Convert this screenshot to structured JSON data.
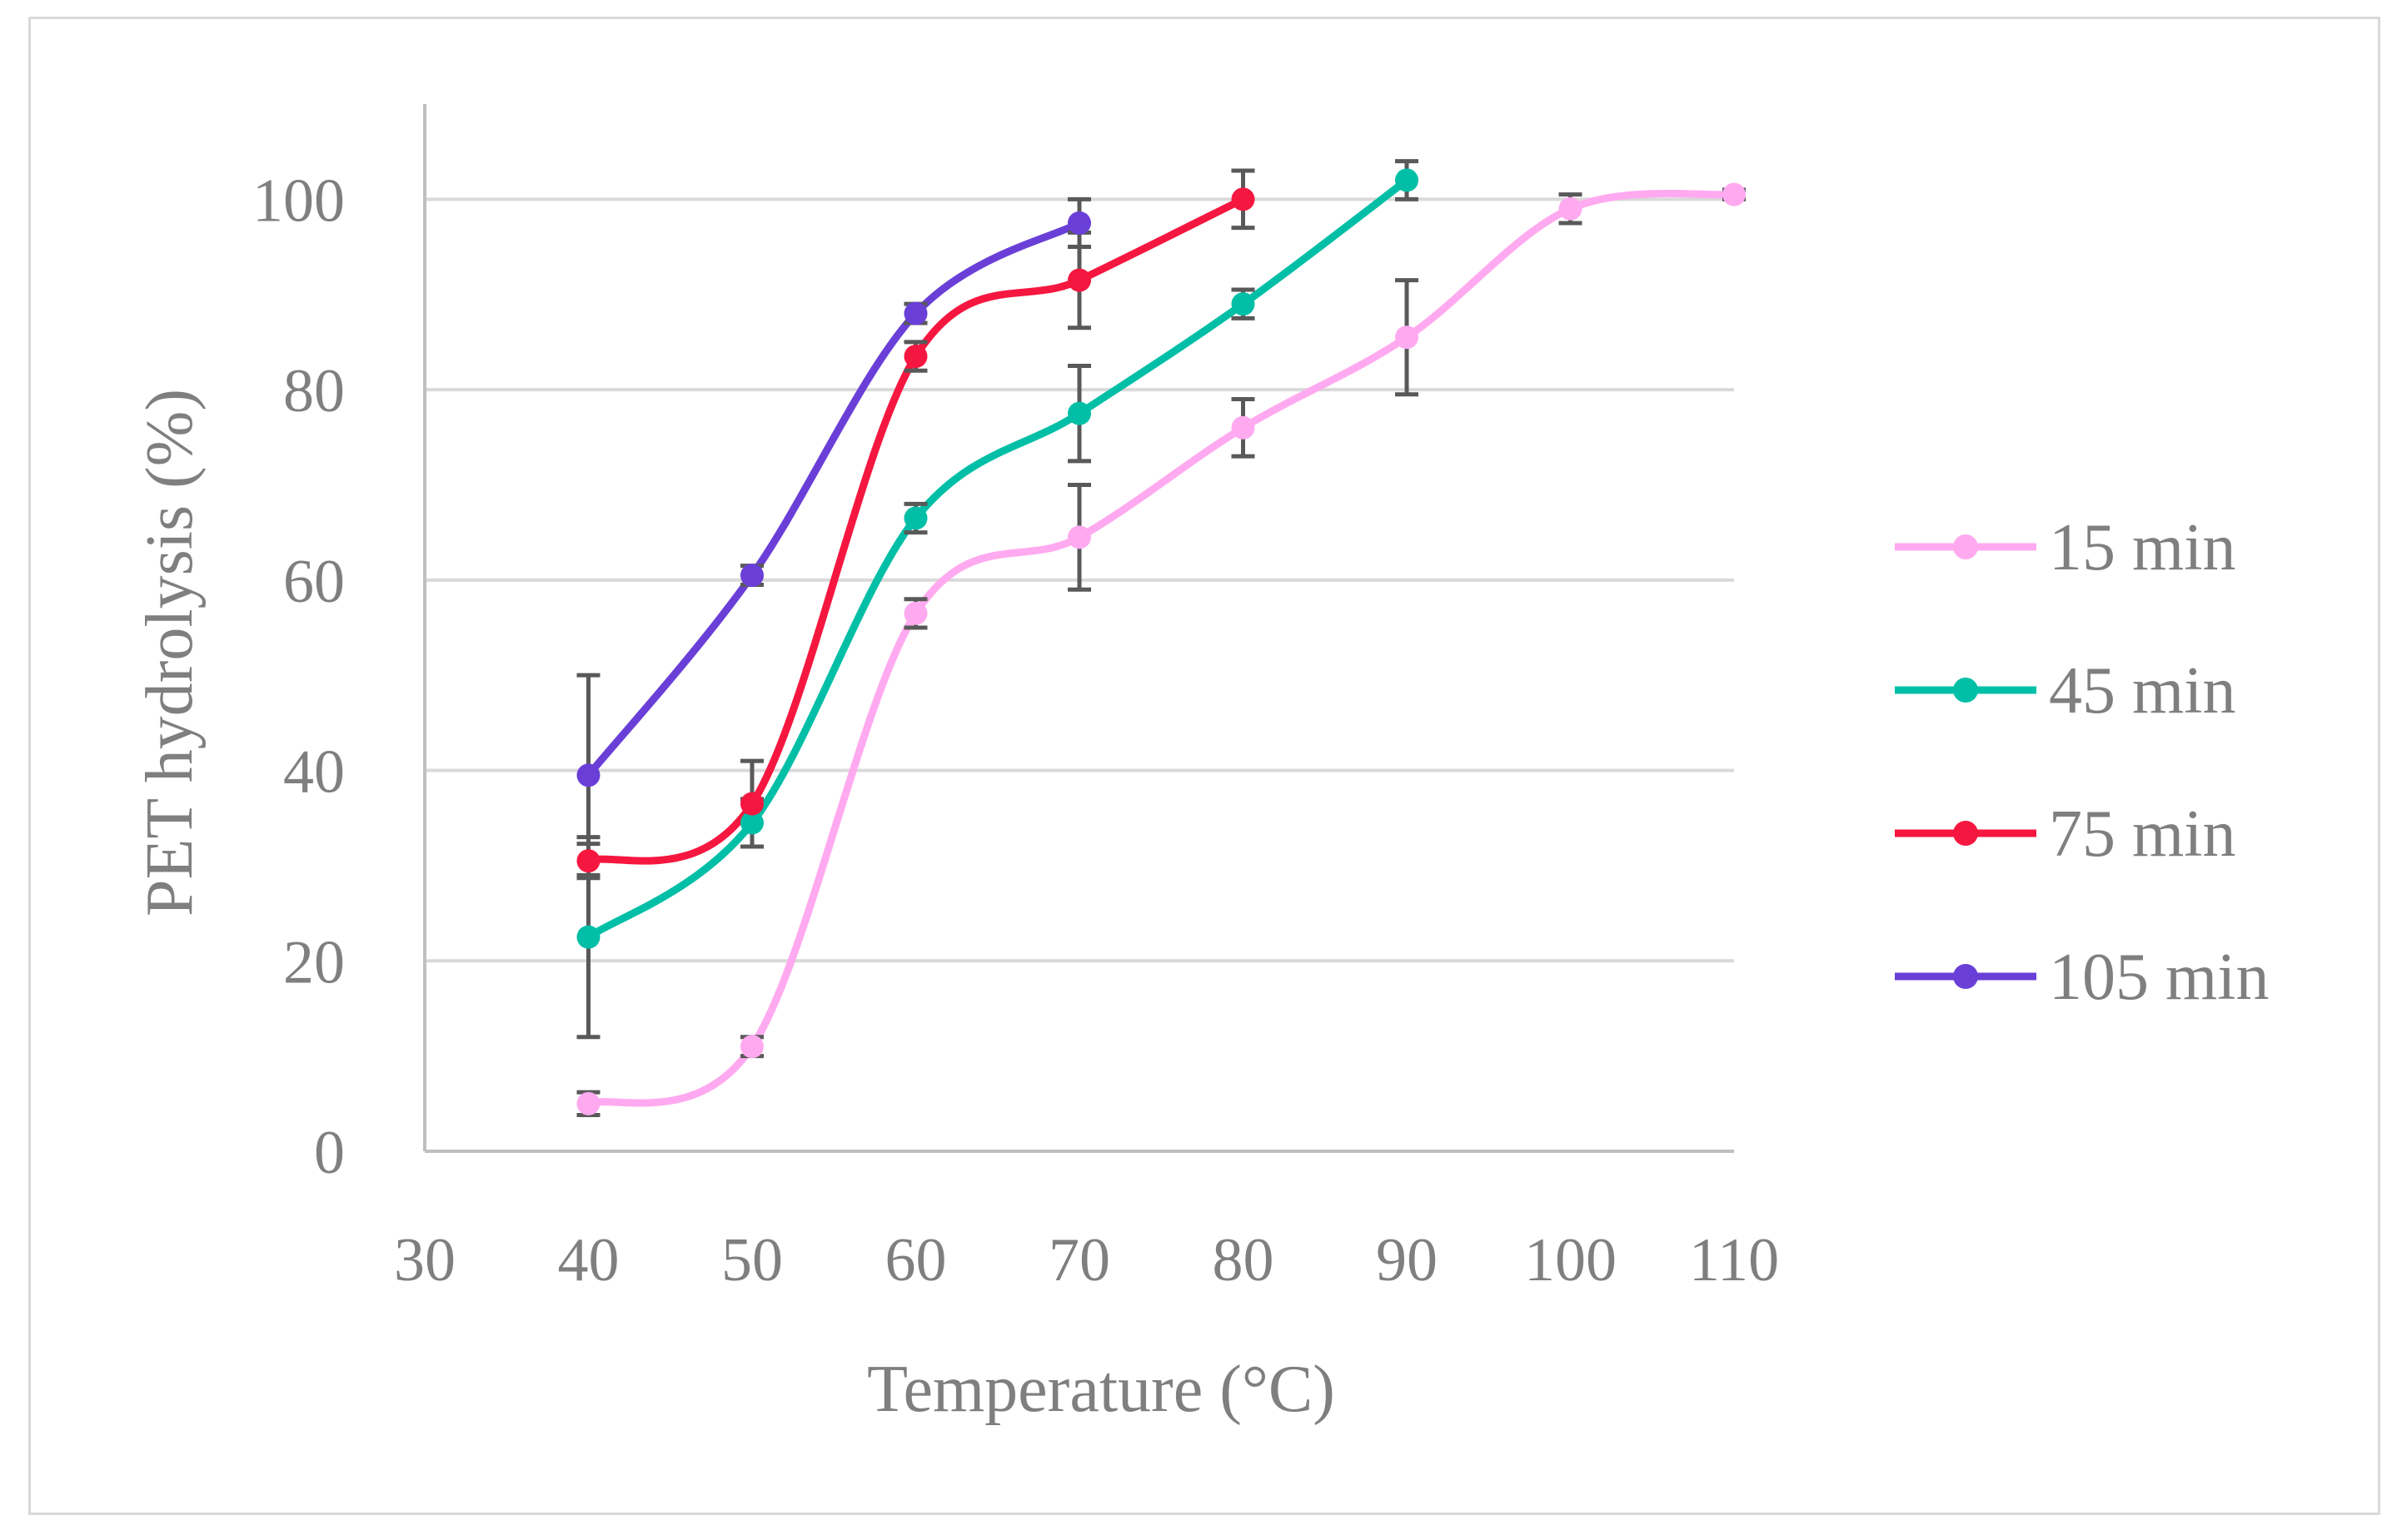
{
  "chart_data": {
    "type": "line",
    "title": "",
    "xlabel": "Temperature (°C)",
    "ylabel": "PET hydrolysis (%)",
    "xlim": [
      30,
      110
    ],
    "ylim": [
      0,
      110
    ],
    "x_ticks": [
      "30",
      "40",
      "50",
      "60",
      "70",
      "80",
      "90",
      "100",
      "110"
    ],
    "y_ticks": [
      "0",
      "20",
      "40",
      "60",
      "80",
      "100"
    ],
    "grid": true,
    "smoothed": true,
    "legend_position": "right",
    "series": [
      {
        "name": "15 min",
        "color": "#ffaaf0",
        "x": [
          40,
          50,
          60,
          70,
          80,
          90,
          100,
          110
        ],
        "values": [
          5,
          11,
          56.5,
          64.5,
          76,
          85.5,
          99,
          100.5
        ],
        "errors": [
          1.2,
          1,
          1.5,
          5.5,
          3,
          6,
          1.5,
          0.5
        ]
      },
      {
        "name": "45 min",
        "color": "#00bfa6",
        "x": [
          40,
          50,
          60,
          70,
          80,
          90
        ],
        "values": [
          22.5,
          34.5,
          66.5,
          77.5,
          89,
          102
        ],
        "errors": [
          10.5,
          2.5,
          1.5,
          5,
          1.5,
          2
        ]
      },
      {
        "name": "75 min",
        "color": "#f5173f",
        "x": [
          40,
          50,
          60,
          70,
          80
        ],
        "values": [
          30.5,
          36.5,
          83.5,
          91.5,
          100
        ],
        "errors": [
          1.8,
          4.5,
          1.5,
          5,
          3
        ]
      },
      {
        "name": "105 min",
        "color": "#6a3fd8",
        "x": [
          40,
          50,
          60,
          70
        ],
        "values": [
          39.5,
          60.5,
          88,
          97.5
        ],
        "errors": [
          10.5,
          1,
          1,
          2.5
        ]
      }
    ]
  }
}
